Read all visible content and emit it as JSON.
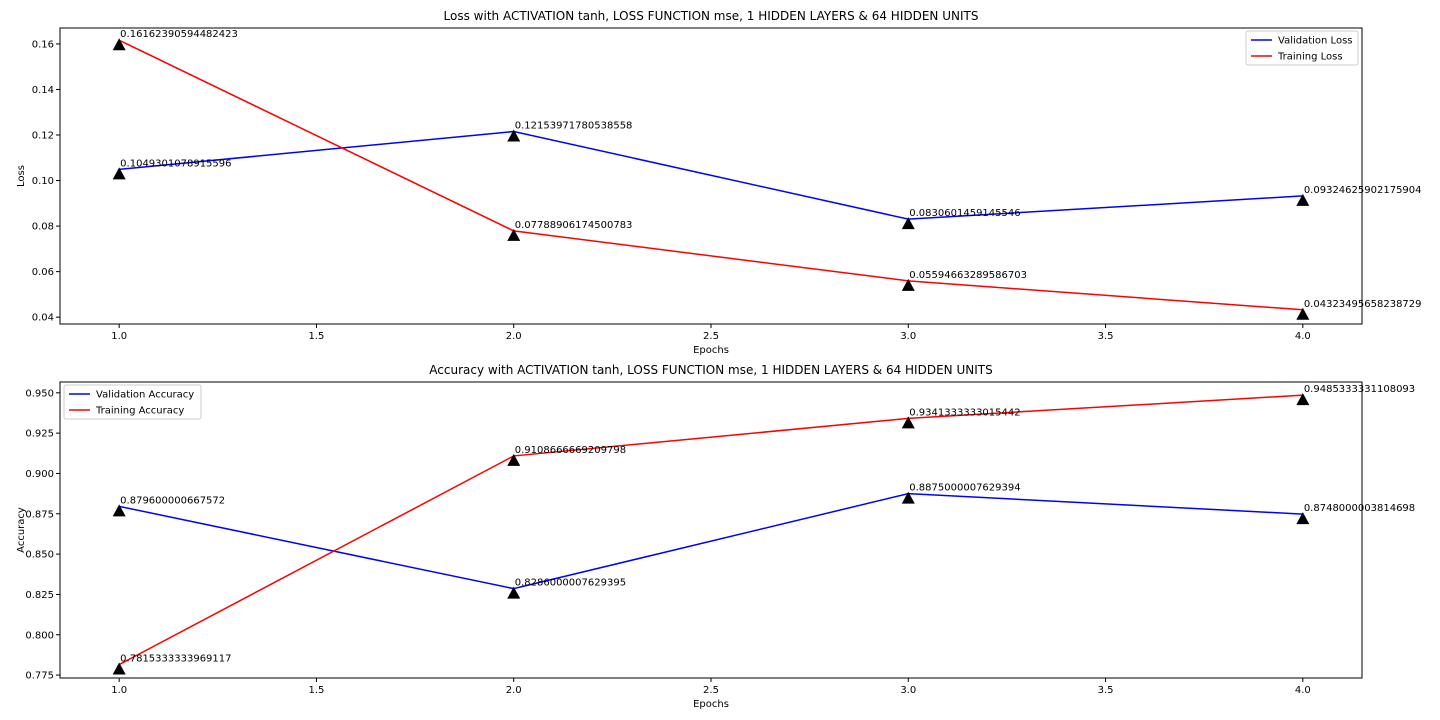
{
  "chart_data": [
    {
      "type": "line",
      "title": "Loss with ACTIVATION tanh, LOSS FUNCTION mse, 1 HIDDEN LAYERS & 64 HIDDEN UNITS",
      "xlabel": "Epochs",
      "ylabel": "Loss",
      "xlim": [
        0.85,
        4.15
      ],
      "ylim": [
        0.037,
        0.167
      ],
      "xticks": [
        1.0,
        1.5,
        2.0,
        2.5,
        3.0,
        3.5,
        4.0
      ],
      "xtick_labels": [
        "1.0",
        "1.5",
        "2.0",
        "2.5",
        "3.0",
        "3.5",
        "4.0"
      ],
      "yticks": [
        0.04,
        0.06,
        0.08,
        0.1,
        0.12,
        0.14,
        0.16
      ],
      "ytick_labels": [
        "0.04",
        "0.06",
        "0.08",
        "0.10",
        "0.12",
        "0.14",
        "0.16"
      ],
      "grid": false,
      "legend_position": "top-right",
      "x": [
        1.0,
        2.0,
        3.0,
        4.0
      ],
      "series": [
        {
          "name": "Validation Loss",
          "color": "#0000ff",
          "values": [
            0.1049301078915596,
            0.12153971780538558,
            0.0830601459145546,
            0.09324625902175904
          ],
          "labels": [
            "0.1049301078915596",
            "0.12153971780538558",
            "0.0830601459145546",
            "0.09324625902175904"
          ]
        },
        {
          "name": "Training Loss",
          "color": "#ff0000",
          "values": [
            0.16162390594482423,
            0.07788906174500783,
            0.05594663289586703,
            0.04323495658238729
          ],
          "labels": [
            "0.16162390594482423",
            "0.07788906174500783",
            "0.05594663289586703",
            "0.04323495658238729"
          ]
        }
      ]
    },
    {
      "type": "line",
      "title": "Accuracy with ACTIVATION tanh, LOSS FUNCTION mse, 1 HIDDEN LAYERS & 64 HIDDEN UNITS",
      "xlabel": "Epochs",
      "ylabel": "Accuracy",
      "xlim": [
        0.85,
        4.15
      ],
      "ylim": [
        0.7732,
        0.9567
      ],
      "xticks": [
        1.0,
        1.5,
        2.0,
        2.5,
        3.0,
        3.5,
        4.0
      ],
      "xtick_labels": [
        "1.0",
        "1.5",
        "2.0",
        "2.5",
        "3.0",
        "3.5",
        "4.0"
      ],
      "yticks": [
        0.775,
        0.8,
        0.825,
        0.85,
        0.875,
        0.9,
        0.925,
        0.95
      ],
      "ytick_labels": [
        "0.775",
        "0.800",
        "0.825",
        "0.850",
        "0.875",
        "0.900",
        "0.925",
        "0.950"
      ],
      "grid": false,
      "legend_position": "top-left",
      "x": [
        1.0,
        2.0,
        3.0,
        4.0
      ],
      "series": [
        {
          "name": "Validation Accuracy",
          "color": "#0000ff",
          "values": [
            0.879600000667572,
            0.8286000007629395,
            0.8875000007629394,
            0.8748000003814698
          ],
          "labels": [
            "0.879600000667572",
            "0.8286000007629395",
            "0.8875000007629394",
            "0.8748000003814698"
          ]
        },
        {
          "name": "Training Accuracy",
          "color": "#ff0000",
          "values": [
            0.7815333333969117,
            0.9108666669209798,
            0.9341333333015442,
            0.9485333331108093
          ],
          "labels": [
            "0.7815333333969117",
            "0.9108666669209798",
            "0.9341333333015442",
            "0.9485333331108093"
          ]
        }
      ]
    }
  ]
}
